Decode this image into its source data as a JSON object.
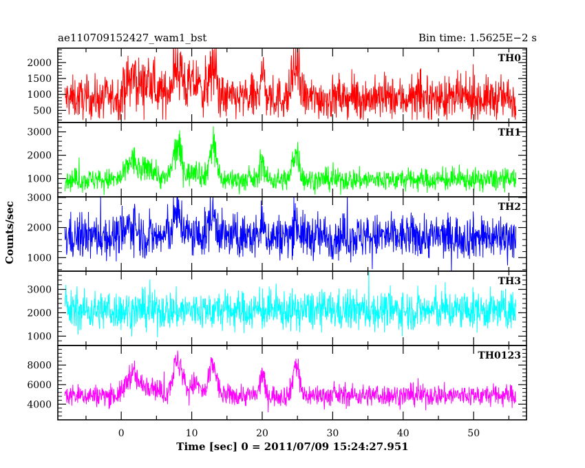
{
  "chart_data": {
    "type": "line",
    "title": "ae110709152427_wam1_bst",
    "subtitle": "Bin time: 1.5625E−2 s",
    "xlabel": "Time [sec] 0 = 2011/07/09 15:24:27.951",
    "ylabel": "Counts/sec",
    "xlim": [
      -9,
      57.5
    ],
    "xticks": [
      0,
      10,
      20,
      30,
      40,
      50
    ],
    "xticklabels": [
      "0",
      "10",
      "20",
      "30",
      "40",
      "50"
    ],
    "data_range_x": [
      -8,
      56
    ],
    "grid": false,
    "panels": [
      {
        "name": "TH0",
        "color": "#ff0000",
        "ylim": [
          120,
          2450
        ],
        "yticks": [
          500,
          1000,
          1500,
          2000
        ],
        "yticklabels": [
          "500",
          "1000",
          "1500",
          "2000"
        ],
        "baseline": 880,
        "spread": 330,
        "noise_min": 200,
        "noise_max": 2450,
        "peaks": [
          {
            "t": 1.5,
            "height": 600,
            "width": 1.2
          },
          {
            "t": 4.0,
            "height": 450,
            "width": 1.5
          },
          {
            "t": 8.0,
            "height": 1000,
            "width": 1.1
          },
          {
            "t": 10.5,
            "height": 500,
            "width": 1.0
          },
          {
            "t": 13.0,
            "height": 900,
            "width": 0.8
          },
          {
            "t": 20.0,
            "height": 900,
            "width": 0.4
          },
          {
            "t": 24.8,
            "height": 1000,
            "width": 0.7
          }
        ]
      },
      {
        "name": "TH1",
        "color": "#00ff00",
        "ylim": [
          220,
          3400
        ],
        "yticks": [
          1000,
          2000,
          3000
        ],
        "yticklabels": [
          "1000",
          "2000",
          "3000"
        ],
        "baseline": 950,
        "spread": 240,
        "noise_min": 300,
        "noise_max": 3300,
        "peaks": [
          {
            "t": 1.5,
            "height": 850,
            "width": 1.0
          },
          {
            "t": 4.0,
            "height": 550,
            "width": 1.2
          },
          {
            "t": 8.0,
            "height": 1400,
            "width": 0.9
          },
          {
            "t": 10.5,
            "height": 500,
            "width": 0.9
          },
          {
            "t": 13.0,
            "height": 1500,
            "width": 0.7
          },
          {
            "t": 20.0,
            "height": 900,
            "width": 0.4
          },
          {
            "t": 24.8,
            "height": 1300,
            "width": 0.6
          }
        ]
      },
      {
        "name": "TH2",
        "color": "#0000ff",
        "ylim": [
          550,
          3020
        ],
        "yticks": [
          1000,
          2000,
          3000
        ],
        "yticklabels": [
          "1000",
          "2000",
          "3000"
        ],
        "baseline": 1700,
        "spread": 370,
        "noise_min": 560,
        "noise_max": 3100,
        "peaks": [
          {
            "t": 1.5,
            "height": 400,
            "width": 1.0
          },
          {
            "t": 8.0,
            "height": 700,
            "width": 1.0
          },
          {
            "t": 13.0,
            "height": 700,
            "width": 0.8
          },
          {
            "t": 20.0,
            "height": 400,
            "width": 0.4
          },
          {
            "t": 24.8,
            "height": 500,
            "width": 0.6
          }
        ]
      },
      {
        "name": "TH3",
        "color": "#00ffff",
        "ylim": [
          600,
          3780
        ],
        "yticks": [
          1000,
          2000,
          3000
        ],
        "yticklabels": [
          "1000",
          "2000",
          "3000"
        ],
        "baseline": 2100,
        "spread": 420,
        "noise_min": 700,
        "noise_max": 3750,
        "peaks": []
      },
      {
        "name": "TH0123",
        "color": "#ff00ff",
        "ylim": [
          2400,
          10000
        ],
        "yticks": [
          4000,
          6000,
          8000
        ],
        "yticklabels": [
          "4000",
          "6000",
          "8000"
        ],
        "baseline": 4900,
        "spread": 560,
        "noise_min": 2600,
        "noise_max": 10000,
        "peaks": [
          {
            "t": 1.5,
            "height": 2200,
            "width": 1.1
          },
          {
            "t": 4.0,
            "height": 1200,
            "width": 1.3
          },
          {
            "t": 8.0,
            "height": 3400,
            "width": 1.0
          },
          {
            "t": 10.5,
            "height": 1200,
            "width": 0.9
          },
          {
            "t": 13.0,
            "height": 3200,
            "width": 0.7
          },
          {
            "t": 20.0,
            "height": 2300,
            "width": 0.4
          },
          {
            "t": 24.8,
            "height": 3300,
            "width": 0.6
          }
        ]
      }
    ]
  }
}
